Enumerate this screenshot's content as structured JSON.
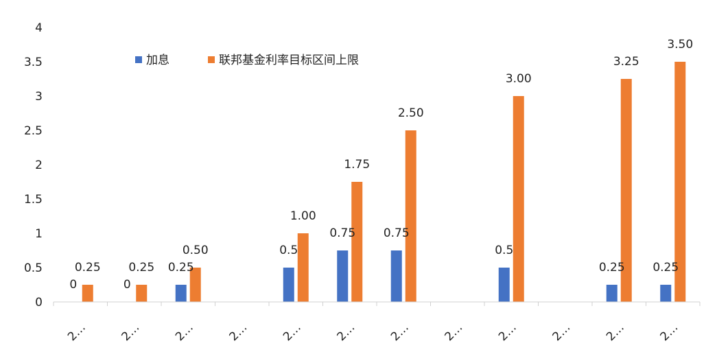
{
  "chart_data": {
    "type": "bar",
    "categories": [
      "2…",
      "2…",
      "2…",
      "2…",
      "2…",
      "2…",
      "2…",
      "2…",
      "2…",
      "2…",
      "2…",
      "2…"
    ],
    "series": [
      {
        "name": "加息",
        "color": "#4472C4",
        "values": [
          0,
          0,
          0.25,
          null,
          0.5,
          0.75,
          0.75,
          null,
          0.5,
          null,
          0.25,
          0.25
        ],
        "labels": [
          "0",
          "0",
          "0.25",
          "",
          "0.5",
          "0.75",
          "0.75",
          "",
          "0.5",
          "",
          "0.25",
          "0.25"
        ]
      },
      {
        "name": "联邦基金利率目标区间上限",
        "color": "#ED7D31",
        "values": [
          0.25,
          0.25,
          0.5,
          null,
          1.0,
          1.75,
          2.5,
          null,
          3.0,
          null,
          3.25,
          3.5
        ],
        "labels": [
          "0.25",
          "0.25",
          "0.50",
          "",
          "1.00",
          "1.75",
          "2.50",
          "",
          "3.00",
          "",
          "3.25",
          "3.50"
        ]
      }
    ],
    "y_ticks": [
      "0",
      "0.5",
      "1",
      "1.5",
      "2",
      "2.5",
      "3",
      "3.5",
      "4"
    ],
    "ylim": [
      0,
      4
    ],
    "grid": false,
    "legend_position": "top-left"
  }
}
